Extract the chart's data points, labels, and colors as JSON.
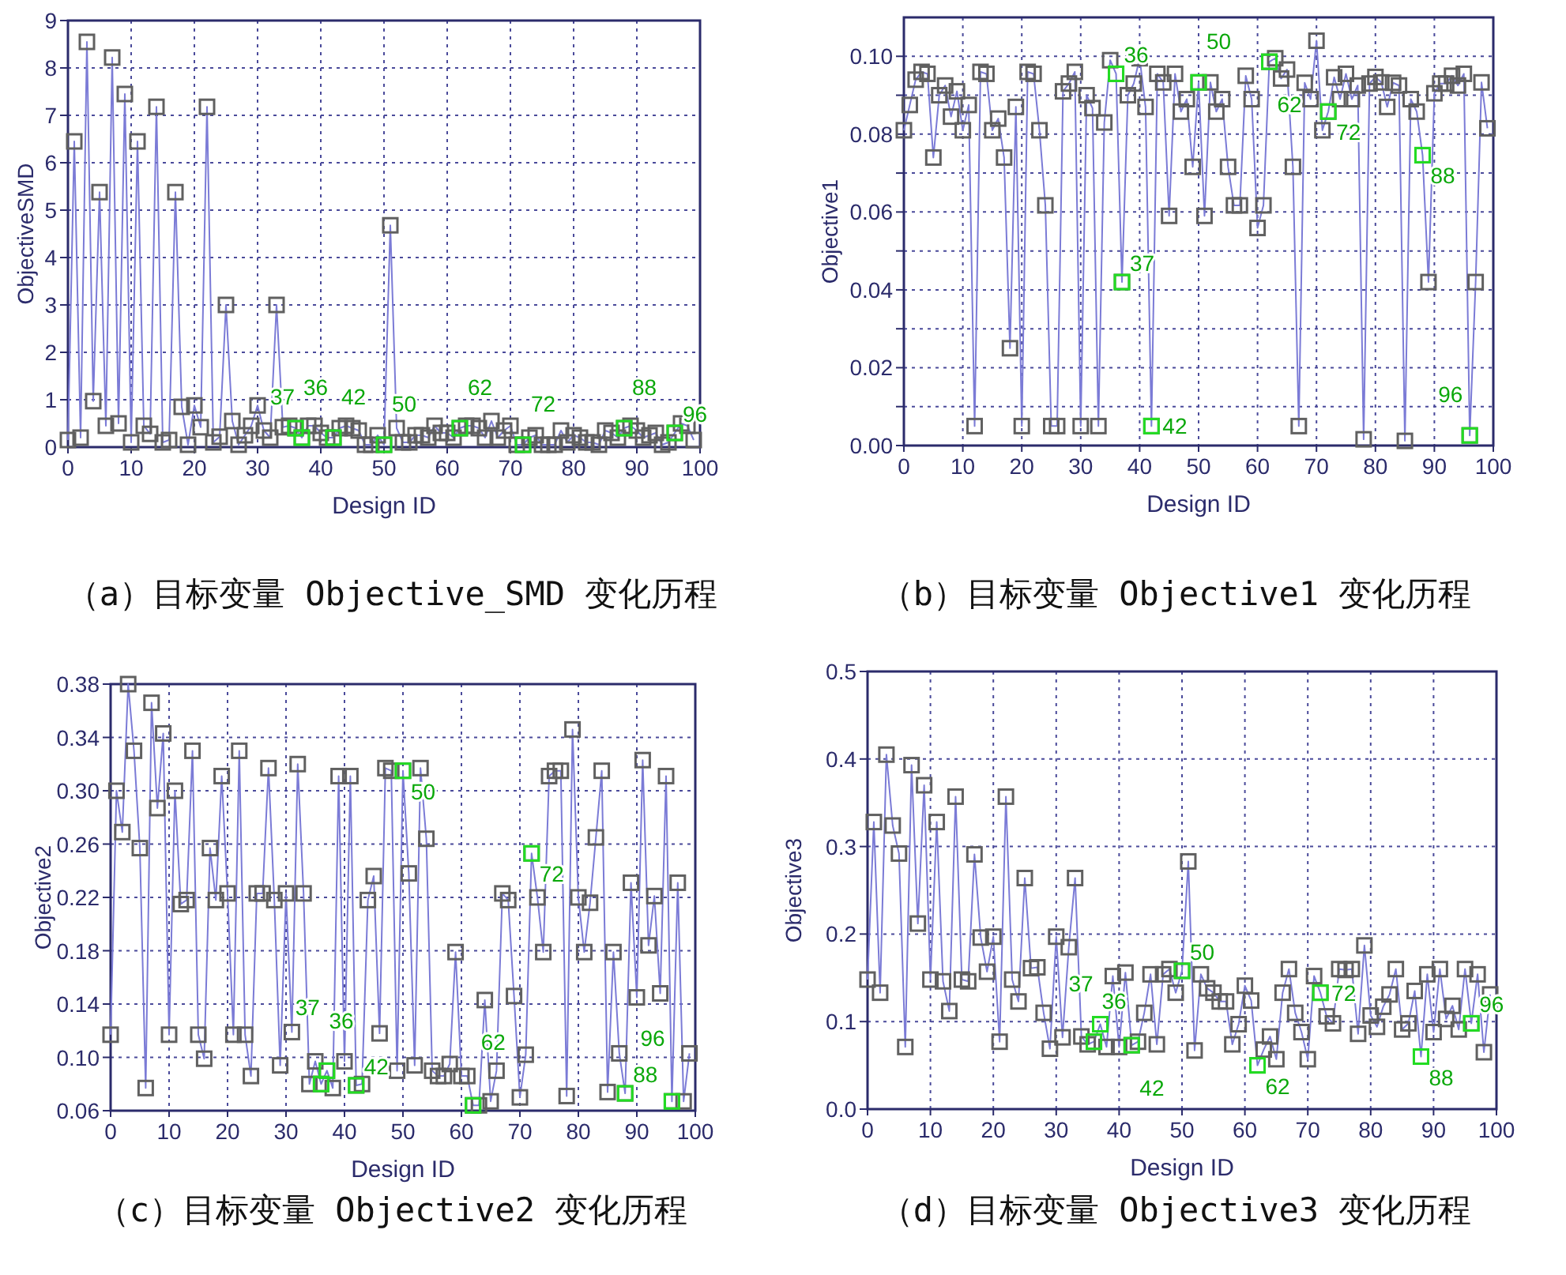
{
  "chart_data": [
    {
      "type": "line",
      "title": "（a）目标变量 Objective_SMD 变化历程",
      "xlabel": "Design ID",
      "ylabel": "ObjectiveSMD",
      "grid": true,
      "marker": "square",
      "line_style": "solid",
      "x": [
        0,
        1,
        2,
        3,
        4,
        5,
        6,
        7,
        8,
        9,
        10,
        11,
        12,
        13,
        14,
        15,
        16,
        17,
        18,
        19,
        20,
        21,
        22,
        23,
        24,
        25,
        26,
        27,
        28,
        29,
        30,
        31,
        32,
        33,
        34,
        35,
        36,
        37,
        38,
        39,
        40,
        41,
        42,
        43,
        44,
        45,
        46,
        47,
        48,
        49,
        50,
        51,
        52,
        53,
        54,
        55,
        56,
        57,
        58,
        59,
        60,
        61,
        62,
        63,
        64,
        65,
        66,
        67,
        68,
        69,
        70,
        71,
        72,
        73,
        74,
        75,
        76,
        77,
        78,
        79,
        80,
        81,
        82,
        83,
        84,
        85,
        86,
        87,
        88,
        89,
        90,
        91,
        92,
        93,
        94,
        95,
        96,
        97,
        98,
        99
      ],
      "xlim": [
        0,
        100
      ],
      "xticks": [
        0,
        10,
        20,
        30,
        40,
        50,
        60,
        70,
        80,
        90,
        100
      ],
      "ylim": [
        0,
        9
      ],
      "yticks": [
        0,
        1,
        2,
        3,
        4,
        5,
        6,
        7,
        8,
        9
      ],
      "series": [
        {
          "type": "line",
          "color": "#7b7bd6",
          "values": [
            0.15,
            6.45,
            0.2,
            8.55,
            0.97,
            5.38,
            0.45,
            8.22,
            0.5,
            7.45,
            0.1,
            6.45,
            0.45,
            0.28,
            7.18,
            0.1,
            0.15,
            5.38,
            0.85,
            0.05,
            0.88,
            0.42,
            7.18,
            0.1,
            0.22,
            3.0,
            0.55,
            0.05,
            0.25,
            0.45,
            0.88,
            0.35,
            0.2,
            3.0,
            0.42,
            0.45,
            0.4,
            0.2,
            0.45,
            0.45,
            0.3,
            0.2,
            0.2,
            0.4,
            0.45,
            0.4,
            0.35,
            0.05,
            0.05,
            0.25,
            0.05,
            4.68,
            0.4,
            0.1,
            0.1,
            0.25,
            0.25,
            0.2,
            0.45,
            0.3,
            0.3,
            0.2,
            0.4,
            0.45,
            0.45,
            0.4,
            0.2,
            0.55,
            0.2,
            0.35,
            0.45,
            0.05,
            0.05,
            0.2,
            0.25,
            0.05,
            0.05,
            0.05,
            0.35,
            0.1,
            0.25,
            0.2,
            0.1,
            0.1,
            0.05,
            0.35,
            0.3,
            0.2,
            0.4,
            0.45,
            0.35,
            0.2,
            0.25,
            0.3,
            0.05,
            0.1,
            0.3,
            0.5,
            0.45,
            0.15
          ]
        },
        {
          "type": "scatter",
          "color": "#22dd22",
          "x": [
            36,
            37,
            42,
            50,
            62,
            72,
            88,
            96
          ],
          "values": [
            0.4,
            0.2,
            0.2,
            0.05,
            0.4,
            0.05,
            0.4,
            0.3
          ]
        }
      ],
      "annotations": [
        {
          "text": "36",
          "x": 36,
          "y": 0.4
        },
        {
          "text": "37",
          "x": 37,
          "y": 0.2
        },
        {
          "text": "42",
          "x": 42,
          "y": 0.2
        },
        {
          "text": "50",
          "x": 50,
          "y": 0.05
        },
        {
          "text": "62",
          "x": 62,
          "y": 0.4
        },
        {
          "text": "72",
          "x": 72,
          "y": 0.05
        },
        {
          "text": "88",
          "x": 88,
          "y": 0.4
        },
        {
          "text": "96",
          "x": 96,
          "y": 0.3
        }
      ]
    },
    {
      "type": "line",
      "title": "（b）目标变量 Objective1 变化历程",
      "xlabel": "Design ID",
      "ylabel": "Objective1",
      "grid": true,
      "marker": "square",
      "line_style": "solid",
      "x": [
        0,
        1,
        2,
        3,
        4,
        5,
        6,
        7,
        8,
        9,
        10,
        11,
        12,
        13,
        14,
        15,
        16,
        17,
        18,
        19,
        20,
        21,
        22,
        23,
        24,
        25,
        26,
        27,
        28,
        29,
        30,
        31,
        32,
        33,
        34,
        35,
        36,
        37,
        38,
        39,
        40,
        41,
        42,
        43,
        44,
        45,
        46,
        47,
        48,
        49,
        50,
        51,
        52,
        53,
        54,
        55,
        56,
        57,
        58,
        59,
        60,
        61,
        62,
        63,
        64,
        65,
        66,
        67,
        68,
        69,
        70,
        71,
        72,
        73,
        74,
        75,
        76,
        77,
        78,
        79,
        80,
        81,
        82,
        83,
        84,
        85,
        86,
        87,
        88,
        89,
        90,
        91,
        92,
        93,
        94,
        95,
        96,
        97,
        98,
        99
      ],
      "xlim": [
        0,
        100
      ],
      "xticks": [
        0,
        10,
        20,
        30,
        40,
        50,
        60,
        70,
        80,
        90,
        100
      ],
      "ylim": [
        0,
        0.11
      ],
      "yticks": [
        {
          "value": 0,
          "label": "0.00"
        },
        {
          "value": 0.01,
          "label": null
        },
        {
          "value": 0.02,
          "label": "0.02"
        },
        {
          "value": 0.03,
          "label": null
        },
        {
          "value": 0.04,
          "label": "0.04"
        },
        {
          "value": 0.05,
          "label": null
        },
        {
          "value": 0.06,
          "label": "0.06"
        },
        {
          "value": 0.07,
          "label": null
        },
        {
          "value": 0.08,
          "label": "0.08"
        },
        {
          "value": 0.09,
          "label": null
        },
        {
          "value": 0.1,
          "label": "0.10"
        }
      ],
      "series": [
        {
          "type": "line",
          "color": "#7b7bd6",
          "values": [
            0.081,
            0.0875,
            0.094,
            0.096,
            0.0955,
            0.074,
            0.09,
            0.0925,
            0.0845,
            0.091,
            0.081,
            0.0875,
            0.005,
            0.096,
            0.0955,
            0.081,
            0.084,
            0.074,
            0.025,
            0.087,
            0.005,
            0.096,
            0.0955,
            0.081,
            0.0617,
            0.005,
            0.005,
            0.091,
            0.093,
            0.096,
            0.005,
            0.09,
            0.0867,
            0.005,
            0.083,
            0.099,
            0.0955,
            0.042,
            0.09,
            0.093,
            0.0995,
            0.087,
            0.005,
            0.0955,
            0.0933,
            0.059,
            0.0955,
            0.0858,
            0.089,
            0.0716,
            0.0933,
            0.059,
            0.0933,
            0.0858,
            0.089,
            0.0716,
            0.0617,
            0.0617,
            0.095,
            0.089,
            0.0559,
            0.0617,
            0.0986,
            0.0995,
            0.0943,
            0.0966,
            0.0716,
            0.005,
            0.0932,
            0.089,
            0.104,
            0.081,
            0.0858,
            0.0946,
            0.089,
            0.0955,
            0.089,
            0.0925,
            0.0016,
            0.093,
            0.0947,
            0.0933,
            0.087,
            0.0932,
            0.0925,
            0.0012,
            0.089,
            0.0858,
            0.0746,
            0.042,
            0.0905,
            0.093,
            0.093,
            0.095,
            0.0925,
            0.0955,
            0.0026,
            0.042,
            0.0933,
            0.0815
          ]
        },
        {
          "type": "scatter",
          "color": "#22dd22",
          "x": [
            36,
            37,
            42,
            50,
            62,
            72,
            88,
            96
          ],
          "values": [
            0.0955,
            0.042,
            0.005,
            0.0933,
            0.0986,
            0.0858,
            0.0746,
            0.0026
          ]
        }
      ],
      "annotations": [
        {
          "text": "36",
          "x": 36,
          "y": 0.0955
        },
        {
          "text": "37",
          "x": 37,
          "y": 0.042
        },
        {
          "text": "42",
          "x": 42,
          "y": 0.005
        },
        {
          "text": "50",
          "x": 50,
          "y": 0.0933
        },
        {
          "text": "62",
          "x": 62,
          "y": 0.0986
        },
        {
          "text": "72",
          "x": 72,
          "y": 0.0858
        },
        {
          "text": "88",
          "x": 88,
          "y": 0.0746
        },
        {
          "text": "96",
          "x": 96,
          "y": 0.0026
        }
      ]
    },
    {
      "type": "line",
      "title": "（c）目标变量 Objective2 变化历程",
      "xlabel": "Design ID",
      "ylabel": "Objective2",
      "grid": true,
      "marker": "square",
      "line_style": "solid",
      "x": [
        0,
        1,
        2,
        3,
        4,
        5,
        6,
        7,
        8,
        9,
        10,
        11,
        12,
        13,
        14,
        15,
        16,
        17,
        18,
        19,
        20,
        21,
        22,
        23,
        24,
        25,
        26,
        27,
        28,
        29,
        30,
        31,
        32,
        33,
        34,
        35,
        36,
        37,
        38,
        39,
        40,
        41,
        42,
        43,
        44,
        45,
        46,
        47,
        48,
        49,
        50,
        51,
        52,
        53,
        54,
        55,
        56,
        57,
        58,
        59,
        60,
        61,
        62,
        63,
        64,
        65,
        66,
        67,
        68,
        69,
        70,
        71,
        72,
        73,
        74,
        75,
        76,
        77,
        78,
        79,
        80,
        81,
        82,
        83,
        84,
        85,
        86,
        87,
        88,
        89,
        90,
        91,
        92,
        93,
        94,
        95,
        96,
        97,
        98,
        99
      ],
      "xlim": [
        0,
        100
      ],
      "xticks": [
        0,
        10,
        20,
        30,
        40,
        50,
        60,
        70,
        80,
        90,
        100
      ],
      "ylim": [
        0.06,
        0.38
      ],
      "yticks": [
        {
          "value": 0.06,
          "label": "0.06"
        },
        {
          "value": 0.1,
          "label": "0.10"
        },
        {
          "value": 0.14,
          "label": "0.14"
        },
        {
          "value": 0.18,
          "label": "0.18"
        },
        {
          "value": 0.22,
          "label": "0.22"
        },
        {
          "value": 0.26,
          "label": "0.26"
        },
        {
          "value": 0.3,
          "label": "0.30"
        },
        {
          "value": 0.34,
          "label": "0.34"
        },
        {
          "value": 0.38,
          "label": "0.38"
        }
      ],
      "series": [
        {
          "type": "line",
          "color": "#7b7bd6",
          "values": [
            0.117,
            0.3,
            0.269,
            0.38,
            0.33,
            0.257,
            0.077,
            0.366,
            0.287,
            0.343,
            0.117,
            0.3,
            0.215,
            0.218,
            0.33,
            0.117,
            0.099,
            0.257,
            0.218,
            0.311,
            0.223,
            0.117,
            0.33,
            0.117,
            0.086,
            0.223,
            0.223,
            0.317,
            0.218,
            0.094,
            0.223,
            0.119,
            0.32,
            0.223,
            0.08,
            0.097,
            0.08,
            0.09,
            0.077,
            0.311,
            0.097,
            0.311,
            0.079,
            0.08,
            0.218,
            0.236,
            0.118,
            0.317,
            0.315,
            0.09,
            0.315,
            0.238,
            0.094,
            0.317,
            0.264,
            0.09,
            0.086,
            0.086,
            0.095,
            0.179,
            0.086,
            0.086,
            0.064,
            0.064,
            0.143,
            0.067,
            0.09,
            0.223,
            0.218,
            0.146,
            0.07,
            0.102,
            0.253,
            0.22,
            0.179,
            0.311,
            0.315,
            0.315,
            0.071,
            0.346,
            0.22,
            0.179,
            0.216,
            0.265,
            0.315,
            0.074,
            0.179,
            0.103,
            0.073,
            0.231,
            0.145,
            0.323,
            0.184,
            0.221,
            0.148,
            0.311,
            0.067,
            0.231,
            0.067,
            0.103
          ]
        },
        {
          "type": "scatter",
          "color": "#22dd22",
          "x": [
            36,
            37,
            42,
            50,
            62,
            72,
            88,
            96
          ],
          "values": [
            0.08,
            0.09,
            0.079,
            0.315,
            0.064,
            0.253,
            0.073,
            0.067
          ]
        }
      ],
      "annotations": [
        {
          "text": "36",
          "x": 36,
          "y": 0.08
        },
        {
          "text": "37",
          "x": 37,
          "y": 0.09
        },
        {
          "text": "42",
          "x": 42,
          "y": 0.079
        },
        {
          "text": "50",
          "x": 50,
          "y": 0.315
        },
        {
          "text": "62",
          "x": 62,
          "y": 0.064
        },
        {
          "text": "72",
          "x": 72,
          "y": 0.253
        },
        {
          "text": "88",
          "x": 88,
          "y": 0.073
        },
        {
          "text": "96",
          "x": 96,
          "y": 0.067
        }
      ]
    },
    {
      "type": "line",
      "title": "（d）目标变量 Objective3 变化历程",
      "xlabel": "Design ID",
      "ylabel": "Objective3",
      "grid": true,
      "marker": "square",
      "line_style": "solid",
      "x": [
        0,
        1,
        2,
        3,
        4,
        5,
        6,
        7,
        8,
        9,
        10,
        11,
        12,
        13,
        14,
        15,
        16,
        17,
        18,
        19,
        20,
        21,
        22,
        23,
        24,
        25,
        26,
        27,
        28,
        29,
        30,
        31,
        32,
        33,
        34,
        35,
        36,
        37,
        38,
        39,
        40,
        41,
        42,
        43,
        44,
        45,
        46,
        47,
        48,
        49,
        50,
        51,
        52,
        53,
        54,
        55,
        56,
        57,
        58,
        59,
        60,
        61,
        62,
        63,
        64,
        65,
        66,
        67,
        68,
        69,
        70,
        71,
        72,
        73,
        74,
        75,
        76,
        77,
        78,
        79,
        80,
        81,
        82,
        83,
        84,
        85,
        86,
        87,
        88,
        89,
        90,
        91,
        92,
        93,
        94,
        95,
        96,
        97,
        98,
        99
      ],
      "xlim": [
        0,
        100
      ],
      "xticks": [
        0,
        10,
        20,
        30,
        40,
        50,
        60,
        70,
        80,
        90,
        100
      ],
      "ylim": [
        0,
        0.5
      ],
      "yticks": [
        {
          "value": 0,
          "label": "0.0"
        },
        {
          "value": 0.1,
          "label": "0.1"
        },
        {
          "value": 0.2,
          "label": "0.2"
        },
        {
          "value": 0.3,
          "label": "0.3"
        },
        {
          "value": 0.4,
          "label": "0.4"
        },
        {
          "value": 0.5,
          "label": "0.5"
        }
      ],
      "series": [
        {
          "type": "line",
          "color": "#7b7bd6",
          "values": [
            0.148,
            0.328,
            0.133,
            0.405,
            0.324,
            0.292,
            0.071,
            0.393,
            0.212,
            0.37,
            0.148,
            0.328,
            0.146,
            0.112,
            0.357,
            0.148,
            0.146,
            0.291,
            0.196,
            0.157,
            0.197,
            0.077,
            0.357,
            0.148,
            0.123,
            0.264,
            0.161,
            0.162,
            0.11,
            0.069,
            0.197,
            0.082,
            0.185,
            0.264,
            0.083,
            0.074,
            0.077,
            0.097,
            0.071,
            0.152,
            0.071,
            0.156,
            0.073,
            0.077,
            0.11,
            0.154,
            0.074,
            0.154,
            0.16,
            0.133,
            0.158,
            0.283,
            0.067,
            0.154,
            0.138,
            0.133,
            0.123,
            0.123,
            0.074,
            0.097,
            0.141,
            0.124,
            0.05,
            0.068,
            0.083,
            0.057,
            0.133,
            0.16,
            0.11,
            0.088,
            0.057,
            0.152,
            0.133,
            0.106,
            0.098,
            0.16,
            0.159,
            0.16,
            0.086,
            0.187,
            0.107,
            0.094,
            0.117,
            0.131,
            0.16,
            0.091,
            0.098,
            0.135,
            0.06,
            0.154,
            0.088,
            0.16,
            0.103,
            0.118,
            0.091,
            0.16,
            0.098,
            0.154,
            0.065,
            0.131
          ]
        },
        {
          "type": "scatter",
          "color": "#22dd22",
          "x": [
            36,
            37,
            42,
            50,
            62,
            72,
            88,
            96
          ],
          "values": [
            0.077,
            0.097,
            0.073,
            0.158,
            0.05,
            0.133,
            0.06,
            0.098
          ]
        }
      ],
      "annotations": [
        {
          "text": "36",
          "x": 36,
          "y": 0.077
        },
        {
          "text": "37",
          "x": 37,
          "y": 0.097
        },
        {
          "text": "42",
          "x": 42,
          "y": 0.073
        },
        {
          "text": "50",
          "x": 50,
          "y": 0.158
        },
        {
          "text": "62",
          "x": 62,
          "y": 0.05
        },
        {
          "text": "72",
          "x": 72,
          "y": 0.133
        },
        {
          "text": "88",
          "x": 88,
          "y": 0.06
        },
        {
          "text": "96",
          "x": 96,
          "y": 0.098
        }
      ]
    }
  ]
}
